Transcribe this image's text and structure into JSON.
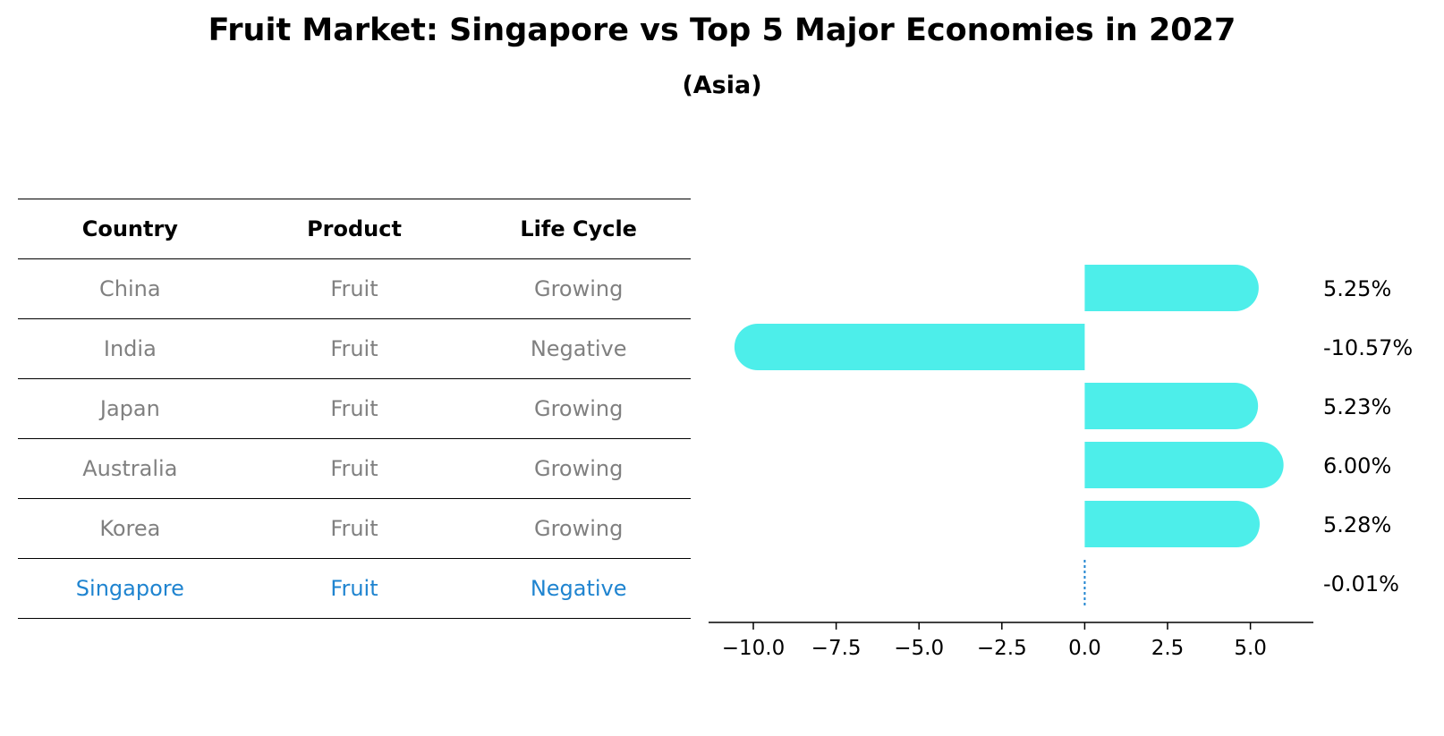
{
  "title": "Fruit Market: Singapore vs Top 5 Major Economies in 2027",
  "subtitle": "(Asia)",
  "table": {
    "headers": [
      "Country",
      "Product",
      "Life Cycle"
    ],
    "rows": [
      {
        "country": "China",
        "product": "Fruit",
        "life_cycle": "Growing"
      },
      {
        "country": "India",
        "product": "Fruit",
        "life_cycle": "Negative"
      },
      {
        "country": "Japan",
        "product": "Fruit",
        "life_cycle": "Growing"
      },
      {
        "country": "Australia",
        "product": "Fruit",
        "life_cycle": "Growing"
      },
      {
        "country": "Korea",
        "product": "Fruit",
        "life_cycle": "Growing"
      },
      {
        "country": "Singapore",
        "product": "Fruit",
        "life_cycle": "Negative"
      }
    ]
  },
  "colors": {
    "bar": "#4deeea",
    "highlight": "#1f84d0",
    "muted_text": "#808080"
  },
  "chart_data": {
    "type": "bar",
    "orientation": "horizontal",
    "categories": [
      "China",
      "India",
      "Japan",
      "Australia",
      "Korea",
      "Singapore"
    ],
    "values": [
      5.25,
      -10.57,
      5.23,
      6.0,
      5.28,
      -0.01
    ],
    "value_labels": [
      "5.25%",
      "-10.57%",
      "5.23%",
      "6.00%",
      "5.28%",
      "-0.01%"
    ],
    "xlim": [
      -11.35,
      6.9
    ],
    "xticks": [
      -10.0,
      -7.5,
      -5.0,
      -2.5,
      0.0,
      2.5,
      5.0
    ],
    "xtick_labels": [
      "−10.0",
      "−7.5",
      "−5.0",
      "−2.5",
      "0.0",
      "2.5",
      "5.0"
    ],
    "xlabel": "",
    "ylabel": "",
    "grid": false
  }
}
